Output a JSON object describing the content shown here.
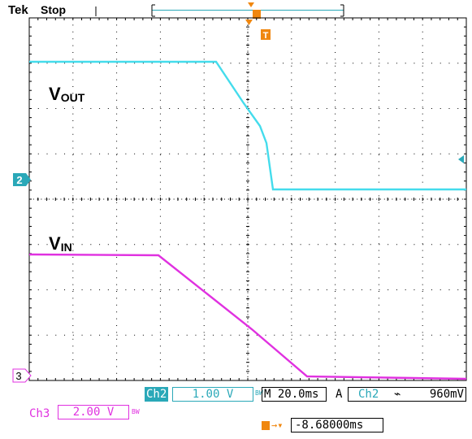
{
  "header": {
    "brand": "Tek",
    "run_state": "Stop"
  },
  "labels": {
    "vout_main": "V",
    "vout_sub": "OUT",
    "vin_main": "V",
    "vin_sub": "IN"
  },
  "markers": {
    "ch2": "2",
    "ch3": "3",
    "trigger": "T"
  },
  "readout": {
    "ch2_name": "Ch2",
    "ch2_scale": "1.00 V",
    "bw_mark": "BW",
    "timebase": "M 20.0ms",
    "trig_mode": "A",
    "trig_source": "Ch2",
    "trig_slope_icon": "falling-edge-icon",
    "trig_level": "960mV",
    "ch3_name": "Ch3",
    "ch3_scale": "2.00 V",
    "trig_pos": "-8.68000ms"
  },
  "colors": {
    "ch2": "#44dcec",
    "ch3": "#e031e0",
    "trigger": "#f0870f",
    "ch2_bg": "#2aa8b8"
  }
}
